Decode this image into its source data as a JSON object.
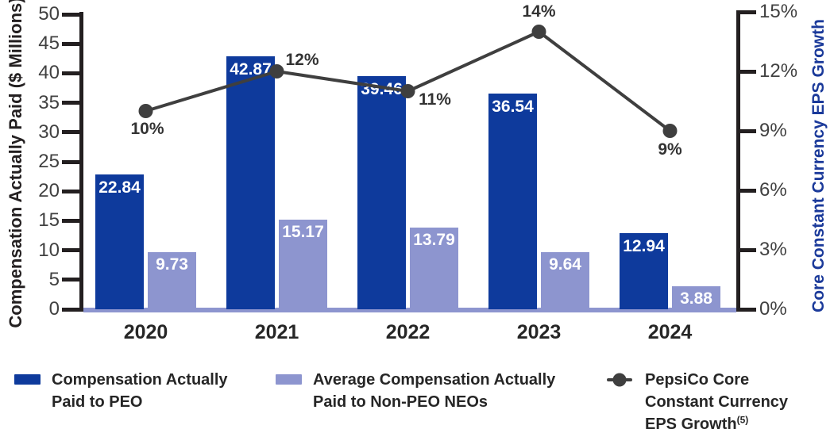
{
  "chart_data": {
    "type": "bar",
    "subtype": "grouped-bars-with-line-overlay",
    "categories": [
      "2020",
      "2021",
      "2022",
      "2023",
      "2024"
    ],
    "series": [
      {
        "name": "Compensation Actually Paid to PEO",
        "type": "bar",
        "color": "#0e3a9c",
        "values": [
          22.84,
          42.87,
          39.46,
          36.54,
          12.94
        ],
        "data_labels": [
          "22.84",
          "42.87",
          "39.46",
          "36.54",
          "12.94"
        ]
      },
      {
        "name": "Average Compensation Actually Paid to Non-PEO NEOs",
        "type": "bar",
        "color": "#8d95cf",
        "values": [
          9.73,
          15.17,
          13.79,
          9.64,
          3.88
        ],
        "data_labels": [
          "9.73",
          "15.17",
          "13.79",
          "9.64",
          "3.88"
        ]
      },
      {
        "name": "PepsiCo Core Constant Currency EPS Growth(5)",
        "type": "line",
        "color": "#3f3f3f",
        "values": [
          10,
          12,
          11,
          14,
          9
        ],
        "data_labels": [
          "10%",
          "12%",
          "11%",
          "14%",
          "9%"
        ]
      }
    ],
    "left_axis": {
      "label": "Compensation Actually Paid ($ Millions)",
      "tick_values": [
        0,
        5,
        10,
        15,
        20,
        25,
        30,
        35,
        40,
        45,
        50
      ],
      "range": [
        0,
        50
      ]
    },
    "right_axis": {
      "label": "Core Constant Currency EPS Growth",
      "tick_values": [
        0,
        3,
        6,
        9,
        12,
        15
      ],
      "tick_labels": [
        "0%",
        "3%",
        "6%",
        "9%",
        "12%",
        "15%"
      ],
      "range": [
        0,
        15
      ]
    },
    "legend_position": "bottom",
    "grid": "off"
  },
  "legend": {
    "items": [
      {
        "marker": "square",
        "color": "#0e3a9c",
        "lines": [
          "Compensation Actually",
          "Paid to PEO"
        ]
      },
      {
        "marker": "square",
        "color": "#8d95cf",
        "lines": [
          "Average Compensation Actually",
          "Paid to Non-PEO NEOs"
        ]
      },
      {
        "marker": "line-dot",
        "color": "#3f3f3f",
        "lines": [
          "PepsiCo Core",
          "Constant Currency",
          "EPS Growth"
        ],
        "footnote_superscript": "(5)"
      }
    ]
  },
  "colors": {
    "peo_bar": "#0e3a9c",
    "neo_bar": "#8d95cf",
    "eps_line": "#3f3f3f",
    "axis": "#231f20",
    "tick_label": "#414141",
    "baseline_strip": "#8d95cf",
    "right_axis_title": "#1b3a9a"
  }
}
